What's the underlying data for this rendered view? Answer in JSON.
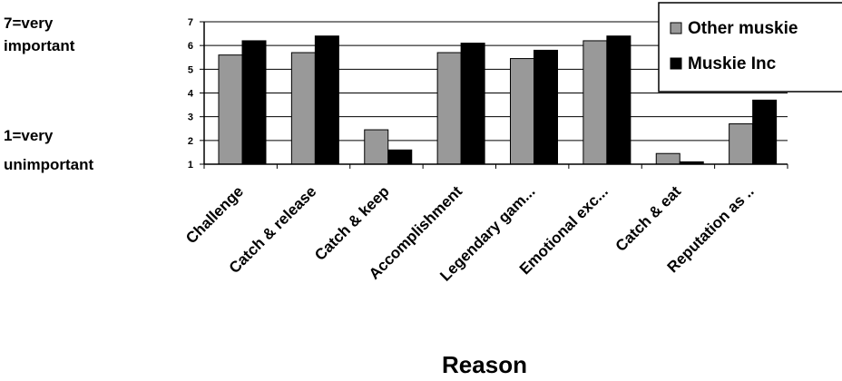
{
  "chart_data": {
    "type": "bar",
    "annotations": {
      "top": [
        "7=very",
        "important"
      ],
      "bottom": [
        "1=very",
        "unimportant"
      ]
    },
    "xlabel": "Reason",
    "ylim": [
      1,
      7
    ],
    "yticks": [
      "1",
      "2",
      "3",
      "4",
      "5",
      "6",
      "7"
    ],
    "grid": true,
    "legend_position": "top-right",
    "categories": [
      "Challenge",
      "Catch & release",
      "Catch & keep",
      "Accomplishment",
      "Legendary gam...",
      "Emotional exc...",
      "Catch & eat",
      "Reputation as .."
    ],
    "series": [
      {
        "name": "Other muskie",
        "color": "#999999",
        "values": [
          5.6,
          5.7,
          2.45,
          5.7,
          5.45,
          6.2,
          1.45,
          2.7
        ]
      },
      {
        "name": "Muskie Inc",
        "color": "#000000",
        "values": [
          6.2,
          6.4,
          1.6,
          6.1,
          5.8,
          6.4,
          1.1,
          3.7
        ]
      }
    ]
  }
}
